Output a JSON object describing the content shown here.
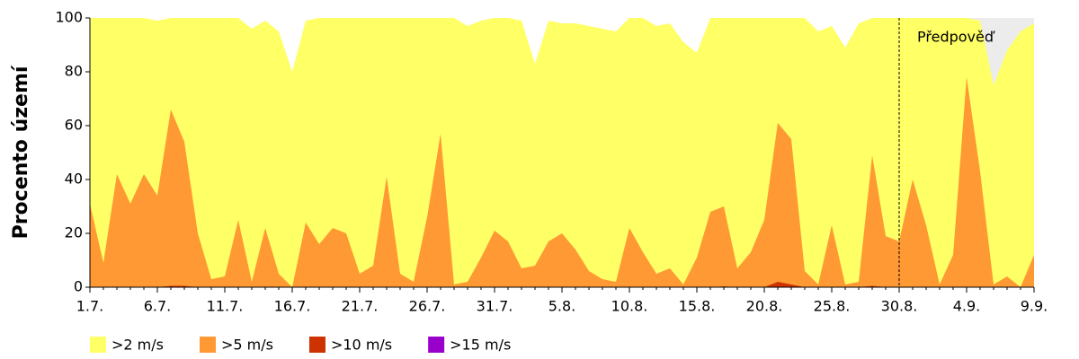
{
  "chart_data": {
    "type": "area",
    "ylabel": "Procento území",
    "categories": [
      "1.7.",
      null,
      null,
      null,
      null,
      "6.7.",
      null,
      null,
      null,
      null,
      "11.7.",
      null,
      null,
      null,
      null,
      "16.7.",
      null,
      null,
      null,
      null,
      "21.7.",
      null,
      null,
      null,
      null,
      "26.7.",
      null,
      null,
      null,
      null,
      "31.7.",
      null,
      null,
      null,
      null,
      "5.8.",
      null,
      null,
      null,
      null,
      "10.8.",
      null,
      null,
      null,
      null,
      "15.8.",
      null,
      null,
      null,
      null,
      "20.8.",
      null,
      null,
      null,
      null,
      "25.8.",
      null,
      null,
      null,
      null,
      "30.8.",
      null,
      null,
      null,
      null,
      "4.9.",
      null,
      null,
      null,
      null,
      "9.9."
    ],
    "series": [
      {
        "name": ">2 m/s",
        "color": "#ffff66",
        "values": [
          100,
          100,
          100,
          100,
          100,
          99,
          100,
          100,
          100,
          100,
          100,
          100,
          96,
          99,
          95,
          80,
          99,
          100,
          100,
          100,
          100,
          100,
          100,
          100,
          100,
          100,
          100,
          100,
          97,
          99,
          100,
          100,
          99,
          83,
          99,
          98,
          98,
          97,
          96,
          95,
          100,
          100,
          97,
          98,
          91,
          87,
          100,
          100,
          100,
          100,
          100,
          100,
          100,
          100,
          95,
          97,
          89,
          98,
          100,
          100,
          100,
          100,
          100,
          100,
          100,
          100,
          99,
          75,
          88,
          95,
          98
        ]
      },
      {
        "name": ">5 m/s",
        "color": "#ff9933",
        "values": [
          31,
          9,
          42,
          31,
          42,
          34,
          66,
          54,
          20,
          3,
          4,
          25,
          2,
          22,
          5,
          0,
          24,
          16,
          22,
          20,
          5,
          8,
          41,
          5,
          2,
          26,
          57,
          1,
          2,
          11,
          21,
          17,
          7,
          8,
          17,
          20,
          14,
          6,
          3,
          2,
          22,
          13,
          5,
          7,
          1,
          11,
          28,
          30,
          7,
          13,
          25,
          61,
          55,
          6,
          1,
          23,
          1,
          2,
          49,
          19,
          17,
          40,
          23,
          1,
          12,
          78,
          43,
          1,
          4,
          0,
          12
        ]
      },
      {
        "name": ">10 m/s",
        "color": "#cc3300",
        "values": [
          0,
          0,
          0,
          0,
          0,
          0,
          0.5,
          0.5,
          0,
          0,
          0,
          0,
          0,
          0,
          0,
          0,
          0,
          0,
          0,
          0,
          0,
          0,
          0,
          0,
          0,
          0,
          0,
          0,
          0,
          0,
          0,
          0,
          0,
          0,
          0,
          0,
          0,
          0,
          0,
          0,
          0,
          0,
          0,
          0,
          0,
          0,
          0,
          0.3,
          0,
          0,
          0,
          2,
          1,
          0,
          0,
          0,
          0,
          0,
          0.5,
          0,
          0,
          0,
          0,
          0,
          0,
          0,
          0,
          0,
          0,
          0,
          0
        ]
      },
      {
        "name": ">15 m/s",
        "color": "#9900cc",
        "values": [
          0,
          0,
          0,
          0,
          0,
          0,
          0,
          0,
          0,
          0,
          0,
          0,
          0,
          0,
          0,
          0,
          0,
          0,
          0,
          0,
          0,
          0,
          0,
          0,
          0,
          0,
          0,
          0,
          0,
          0,
          0,
          0,
          0,
          0,
          0,
          0,
          0,
          0,
          0,
          0,
          0,
          0,
          0,
          0,
          0,
          0,
          0,
          0,
          0,
          0,
          0,
          0,
          0,
          0,
          0,
          0,
          0,
          0,
          0,
          0,
          0,
          0,
          0,
          0,
          0,
          0,
          0,
          0,
          0,
          0,
          0
        ]
      }
    ],
    "ylim": [
      0,
      100
    ],
    "yticks": [
      0,
      20,
      40,
      60,
      80,
      100
    ],
    "annotation": {
      "text": "Předpověď",
      "x": "30.8."
    },
    "forecast_color": "#ececec",
    "legend": "bottom-left"
  }
}
